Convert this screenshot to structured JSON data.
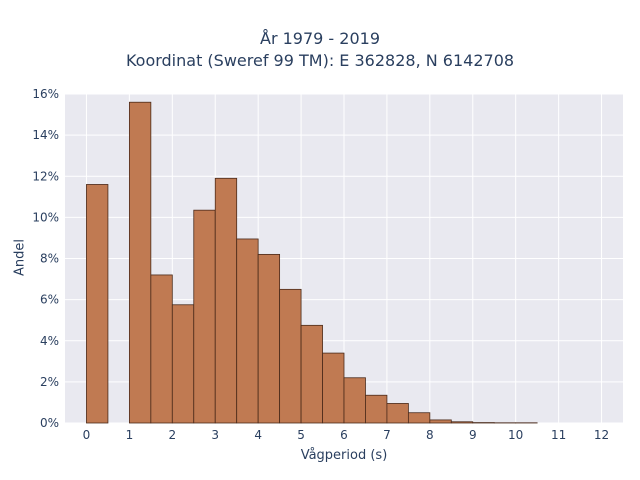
{
  "chart_data": {
    "type": "bar",
    "title_line1": "År 1979 - 2019",
    "title_line2": "Koordinat (Sweref 99 TM): E 362828, N 6142708",
    "xlabel": "Vågperiod (s)",
    "ylabel": "Andel",
    "x_ticks": [
      "0",
      "1",
      "2",
      "3",
      "4",
      "5",
      "6",
      "7",
      "8",
      "9",
      "10",
      "11",
      "12"
    ],
    "y_ticks": [
      "0%",
      "2%",
      "4%",
      "6%",
      "8%",
      "10%",
      "12%",
      "14%",
      "16%"
    ],
    "xlim": [
      -0.5,
      12.5
    ],
    "ylim": [
      0,
      16
    ],
    "bin_width": 0.5,
    "bins": [
      {
        "x_start": 0.0,
        "value": 11.6
      },
      {
        "x_start": 1.0,
        "value": 15.6
      },
      {
        "x_start": 1.5,
        "value": 7.2
      },
      {
        "x_start": 2.0,
        "value": 5.75
      },
      {
        "x_start": 2.5,
        "value": 10.35
      },
      {
        "x_start": 3.0,
        "value": 11.9
      },
      {
        "x_start": 3.5,
        "value": 8.95
      },
      {
        "x_start": 4.0,
        "value": 8.2
      },
      {
        "x_start": 4.5,
        "value": 6.5
      },
      {
        "x_start": 5.0,
        "value": 4.75
      },
      {
        "x_start": 5.5,
        "value": 3.4
      },
      {
        "x_start": 6.0,
        "value": 2.2
      },
      {
        "x_start": 6.5,
        "value": 1.35
      },
      {
        "x_start": 7.0,
        "value": 0.95
      },
      {
        "x_start": 7.5,
        "value": 0.5
      },
      {
        "x_start": 8.0,
        "value": 0.15
      },
      {
        "x_start": 8.5,
        "value": 0.06
      },
      {
        "x_start": 9.0,
        "value": 0.02
      },
      {
        "x_start": 9.5,
        "value": 0.01
      },
      {
        "x_start": 10.0,
        "value": 0.01
      }
    ],
    "bar_color": "#c07a52",
    "bar_edge_color": "#4a2a1a",
    "plot_bg": "#e9e9f0",
    "grid": true,
    "legend": "none"
  }
}
